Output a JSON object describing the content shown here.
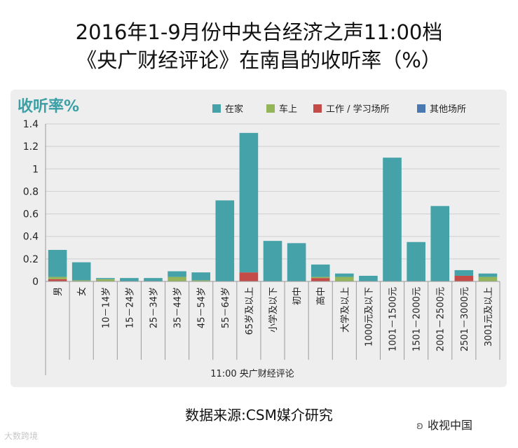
{
  "title_line1": "2016年1-9月份中央台经济之声11:00档",
  "title_line2": "《央广财经评论》在南昌的收听率（%）",
  "source": "数据来源:CSM媒介研究",
  "brand": "收视中国",
  "watermark": "大数跨境",
  "colors": {
    "home": "#44a2a8",
    "car": "#94b55a",
    "work": "#c44b48",
    "other": "#4a78b0",
    "ylabel": "#3aa0a6"
  },
  "chart_data": {
    "type": "bar",
    "stacked": true,
    "ylabel": "收听率%",
    "xlabel": "11:00  央广财经评论",
    "ylim": [
      0,
      1.4
    ],
    "yticks": [
      "0",
      "0.2",
      "0.4",
      "0.6",
      "0.8",
      "1",
      "1.2",
      "1.4"
    ],
    "legend_position": "top-right",
    "categories": [
      "男",
      "女",
      "10－14岁",
      "15－24岁",
      "25－34岁",
      "35－44岁",
      "45－54岁",
      "55－64岁",
      "65岁及以上",
      "小学及以下",
      "初中",
      "高中",
      "大学及以上",
      "1000元及以下",
      "1001－1500元",
      "1501－2000元",
      "2001－2500元",
      "2501－3000元",
      "3001元及以上"
    ],
    "series": [
      {
        "name": "在家",
        "values": [
          0.24,
          0.16,
          0.01,
          0.03,
          0.03,
          0.05,
          0.07,
          0.72,
          1.24,
          0.36,
          0.34,
          0.11,
          0.03,
          0.05,
          1.1,
          0.35,
          0.67,
          0.05,
          0.03
        ]
      },
      {
        "name": "车上",
        "values": [
          0.02,
          0.01,
          0.02,
          0.0,
          0.0,
          0.04,
          0.01,
          0.0,
          0.0,
          0.0,
          0.0,
          0.01,
          0.04,
          0.0,
          0.0,
          0.0,
          0.0,
          0.0,
          0.04
        ]
      },
      {
        "name": "工作 / 学习场所",
        "values": [
          0.02,
          0.0,
          0.0,
          0.0,
          0.0,
          0.0,
          0.0,
          0.0,
          0.08,
          0.0,
          0.0,
          0.03,
          0.0,
          0.0,
          0.0,
          0.0,
          0.0,
          0.05,
          0.0
        ]
      },
      {
        "name": "其他场所",
        "values": [
          0.0,
          0.0,
          0.0,
          0.0,
          0.0,
          0.0,
          0.0,
          0.0,
          0.0,
          0.0,
          0.0,
          0.0,
          0.0,
          0.0,
          0.0,
          0.0,
          0.0,
          0.0,
          0.0
        ]
      }
    ]
  }
}
